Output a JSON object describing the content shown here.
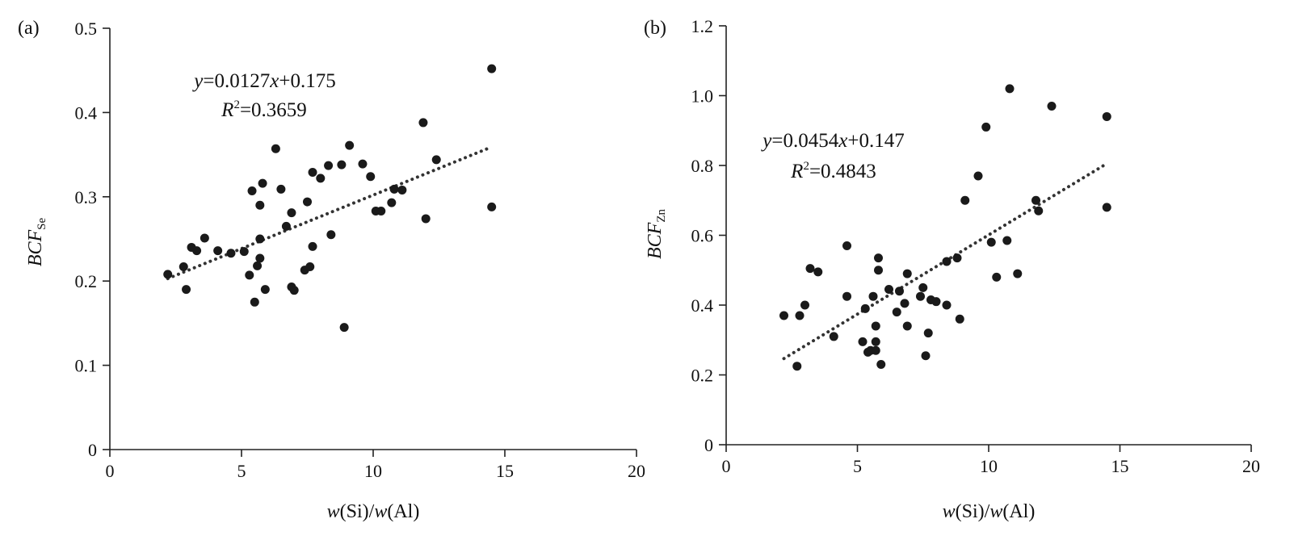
{
  "chart_data": [
    {
      "type": "scatter",
      "panel_label": "(a)",
      "xlabel": {
        "w1": "w",
        "mid": "(Si)/",
        "w2": "w",
        "end": "(Al)"
      },
      "ylabel": {
        "main": "BCF",
        "sub": "Se"
      },
      "xlim": [
        0,
        20
      ],
      "ylim": [
        0,
        0.5
      ],
      "xticks": [
        "0",
        "5",
        "10",
        "15",
        "20"
      ],
      "yticks": [
        "0",
        "0.1",
        "0.2",
        "0.3",
        "0.4",
        "0.5"
      ],
      "grid": false,
      "equation": {
        "y": "y",
        "eq": "=0.0127",
        "x": "x",
        "rest": "+0.175"
      },
      "r2": {
        "r": "R",
        "sup": "2",
        "val": "=0.3659"
      },
      "trendline": {
        "slope": 0.0127,
        "intercept": 0.175,
        "x_range": [
          2.2,
          14.5
        ]
      },
      "points": [
        [
          2.2,
          0.208
        ],
        [
          2.8,
          0.217
        ],
        [
          2.9,
          0.19
        ],
        [
          3.1,
          0.24
        ],
        [
          3.3,
          0.236
        ],
        [
          3.6,
          0.251
        ],
        [
          4.1,
          0.236
        ],
        [
          4.6,
          0.233
        ],
        [
          5.1,
          0.235
        ],
        [
          5.3,
          0.207
        ],
        [
          5.4,
          0.307
        ],
        [
          5.5,
          0.175
        ],
        [
          5.6,
          0.218
        ],
        [
          5.7,
          0.227
        ],
        [
          5.7,
          0.25
        ],
        [
          5.7,
          0.29
        ],
        [
          5.8,
          0.316
        ],
        [
          5.9,
          0.19
        ],
        [
          6.3,
          0.357
        ],
        [
          6.5,
          0.309
        ],
        [
          6.7,
          0.265
        ],
        [
          6.9,
          0.281
        ],
        [
          6.9,
          0.193
        ],
        [
          7.0,
          0.189
        ],
        [
          7.4,
          0.213
        ],
        [
          7.5,
          0.294
        ],
        [
          7.6,
          0.217
        ],
        [
          7.7,
          0.241
        ],
        [
          7.7,
          0.329
        ],
        [
          8.0,
          0.322
        ],
        [
          8.3,
          0.337
        ],
        [
          8.4,
          0.255
        ],
        [
          8.8,
          0.338
        ],
        [
          8.9,
          0.145
        ],
        [
          9.1,
          0.361
        ],
        [
          9.6,
          0.339
        ],
        [
          9.9,
          0.324
        ],
        [
          10.1,
          0.283
        ],
        [
          10.3,
          0.283
        ],
        [
          10.7,
          0.293
        ],
        [
          10.8,
          0.309
        ],
        [
          11.1,
          0.308
        ],
        [
          11.9,
          0.388
        ],
        [
          12.0,
          0.274
        ],
        [
          12.4,
          0.344
        ],
        [
          14.5,
          0.452
        ],
        [
          14.5,
          0.288
        ]
      ]
    },
    {
      "type": "scatter",
      "panel_label": "(b)",
      "xlabel": {
        "w1": "w",
        "mid": "(Si)/",
        "w2": "w",
        "end": "(Al)"
      },
      "ylabel": {
        "main": "BCF",
        "sub": "Zn"
      },
      "xlim": [
        0,
        20
      ],
      "ylim": [
        0,
        1.2
      ],
      "xticks": [
        "0",
        "5",
        "10",
        "15",
        "20"
      ],
      "yticks": [
        "0",
        "0.2",
        "0.4",
        "0.6",
        "0.8",
        "1.0",
        "1.2"
      ],
      "grid": false,
      "equation": {
        "y": "y",
        "eq": "=0.0454",
        "x": "x",
        "rest": "+0.147"
      },
      "r2": {
        "r": "R",
        "sup": "2",
        "val": "=0.4843"
      },
      "trendline": {
        "slope": 0.0454,
        "intercept": 0.147,
        "x_range": [
          2.2,
          14.5
        ]
      },
      "points": [
        [
          2.2,
          0.37
        ],
        [
          2.7,
          0.225
        ],
        [
          2.8,
          0.37
        ],
        [
          3.0,
          0.4
        ],
        [
          3.2,
          0.505
        ],
        [
          3.5,
          0.495
        ],
        [
          4.1,
          0.31
        ],
        [
          4.6,
          0.57
        ],
        [
          4.6,
          0.425
        ],
        [
          5.2,
          0.295
        ],
        [
          5.3,
          0.39
        ],
        [
          5.4,
          0.265
        ],
        [
          5.5,
          0.27
        ],
        [
          5.6,
          0.425
        ],
        [
          5.7,
          0.34
        ],
        [
          5.7,
          0.295
        ],
        [
          5.7,
          0.27
        ],
        [
          5.8,
          0.5
        ],
        [
          5.8,
          0.535
        ],
        [
          5.9,
          0.23
        ],
        [
          6.2,
          0.445
        ],
        [
          6.5,
          0.38
        ],
        [
          6.6,
          0.44
        ],
        [
          6.8,
          0.405
        ],
        [
          6.9,
          0.49
        ],
        [
          6.9,
          0.34
        ],
        [
          7.4,
          0.425
        ],
        [
          7.5,
          0.45
        ],
        [
          7.6,
          0.255
        ],
        [
          7.7,
          0.32
        ],
        [
          7.8,
          0.415
        ],
        [
          8.0,
          0.41
        ],
        [
          8.4,
          0.4
        ],
        [
          8.4,
          0.525
        ],
        [
          8.8,
          0.535
        ],
        [
          8.9,
          0.36
        ],
        [
          9.1,
          0.7
        ],
        [
          9.6,
          0.77
        ],
        [
          9.9,
          0.91
        ],
        [
          10.1,
          0.58
        ],
        [
          10.3,
          0.48
        ],
        [
          10.7,
          0.585
        ],
        [
          10.8,
          1.02
        ],
        [
          11.1,
          0.49
        ],
        [
          11.8,
          0.7
        ],
        [
          11.9,
          0.67
        ],
        [
          12.4,
          0.97
        ],
        [
          14.5,
          0.94
        ],
        [
          14.5,
          0.68
        ]
      ]
    }
  ]
}
